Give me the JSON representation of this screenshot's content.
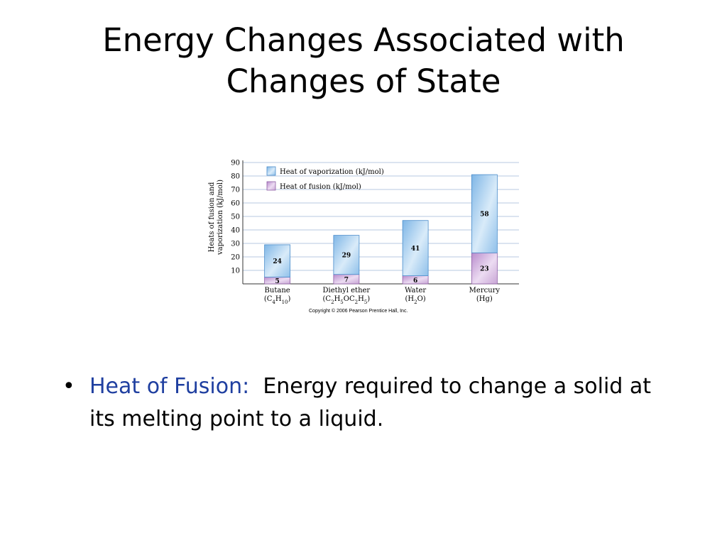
{
  "slide": {
    "title_line1": "Energy Changes Associated with",
    "title_line2": "Changes of State",
    "bullet_marker": "•",
    "bullet_term": "Heat of Fusion:",
    "bullet_text": "Energy required to change a solid at its melting point to a liquid."
  },
  "chart_data": {
    "type": "bar",
    "stacked": true,
    "ylabel_line1": "Heats of fusion and",
    "ylabel_line2": "vaporization (kJ/mol)",
    "ylim": [
      0,
      90
    ],
    "yticks": [
      10,
      20,
      30,
      40,
      50,
      60,
      70,
      80,
      90
    ],
    "grid": true,
    "legend_position": "top-left",
    "categories": [
      {
        "name": "Butane",
        "formula": [
          [
            "(C",
            ""
          ],
          [
            "4",
            "sub"
          ],
          [
            "H",
            ""
          ],
          [
            "10",
            "sub"
          ],
          [
            ")",
            ""
          ]
        ]
      },
      {
        "name": "Diethyl ether",
        "formula": [
          [
            "(C",
            ""
          ],
          [
            "2",
            "sub"
          ],
          [
            "H",
            ""
          ],
          [
            "5",
            "sub"
          ],
          [
            "OC",
            ""
          ],
          [
            "2",
            "sub"
          ],
          [
            "H",
            ""
          ],
          [
            "5",
            "sub"
          ],
          [
            ")",
            ""
          ]
        ]
      },
      {
        "name": "Water",
        "formula": [
          [
            "(H",
            ""
          ],
          [
            "2",
            "sub"
          ],
          [
            "O)",
            ""
          ]
        ]
      },
      {
        "name": "Mercury",
        "formula": [
          [
            "(Hg)",
            ""
          ]
        ]
      }
    ],
    "series": [
      {
        "name": "Heat of fusion (kJ/mol)",
        "values": [
          5,
          7,
          6,
          23
        ],
        "color": "#c9a6d6"
      },
      {
        "name": "Heat of vaporization (kJ/mol)",
        "values": [
          24,
          29,
          41,
          58
        ],
        "color": "#8fc0ea"
      }
    ],
    "credit": "Copyright © 2006 Pearson Prentice Hall, Inc."
  }
}
